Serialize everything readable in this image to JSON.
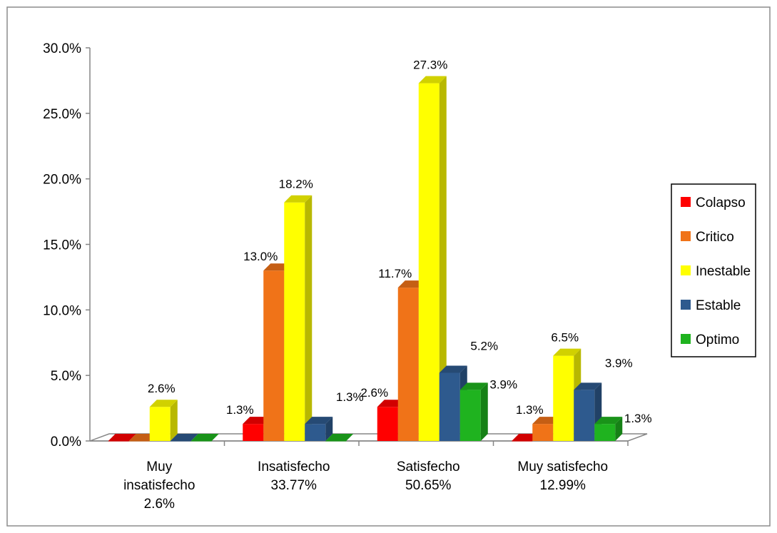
{
  "chart_data": {
    "type": "bar",
    "title": "",
    "xlabel": "",
    "ylabel": "",
    "ylim": [
      0,
      30
    ],
    "y_ticks": [
      "0.0%",
      "5.0%",
      "10.0%",
      "15.0%",
      "20.0%",
      "25.0%",
      "30.0%"
    ],
    "grid": false,
    "legend_position": "right",
    "categories": [
      [
        "Muy",
        "insatisfecho",
        "2.6%"
      ],
      [
        "Insatisfecho",
        "33.77%"
      ],
      [
        "Satisfecho",
        "50.65%"
      ],
      [
        "Muy satisfecho",
        "12.99%"
      ]
    ],
    "series": [
      {
        "name": "Colapso",
        "color": "#ff0000",
        "values": [
          0,
          1.3,
          2.6,
          0
        ],
        "labels": [
          "",
          "1.3%",
          "2.6%",
          ""
        ]
      },
      {
        "name": "Critico",
        "color": "#f07318",
        "values": [
          0,
          13.0,
          11.7,
          1.3
        ],
        "labels": [
          "",
          "13.0%",
          "11.7%",
          "1.3%"
        ]
      },
      {
        "name": "Inestable",
        "color": "#ffff00",
        "values": [
          2.6,
          18.2,
          27.3,
          6.5
        ],
        "labels": [
          "2.6%",
          "18.2%",
          "27.3%",
          "6.5%"
        ]
      },
      {
        "name": "Estable",
        "color": "#2e5a8e",
        "values": [
          0,
          1.3,
          5.2,
          3.9
        ],
        "labels": [
          "",
          "1.3%",
          "5.2%",
          "3.9%"
        ]
      },
      {
        "name": "Optimo",
        "color": "#1fb31f",
        "values": [
          0,
          0,
          3.9,
          1.3
        ],
        "labels": [
          "",
          "",
          "3.9%",
          "1.3%"
        ]
      }
    ]
  }
}
